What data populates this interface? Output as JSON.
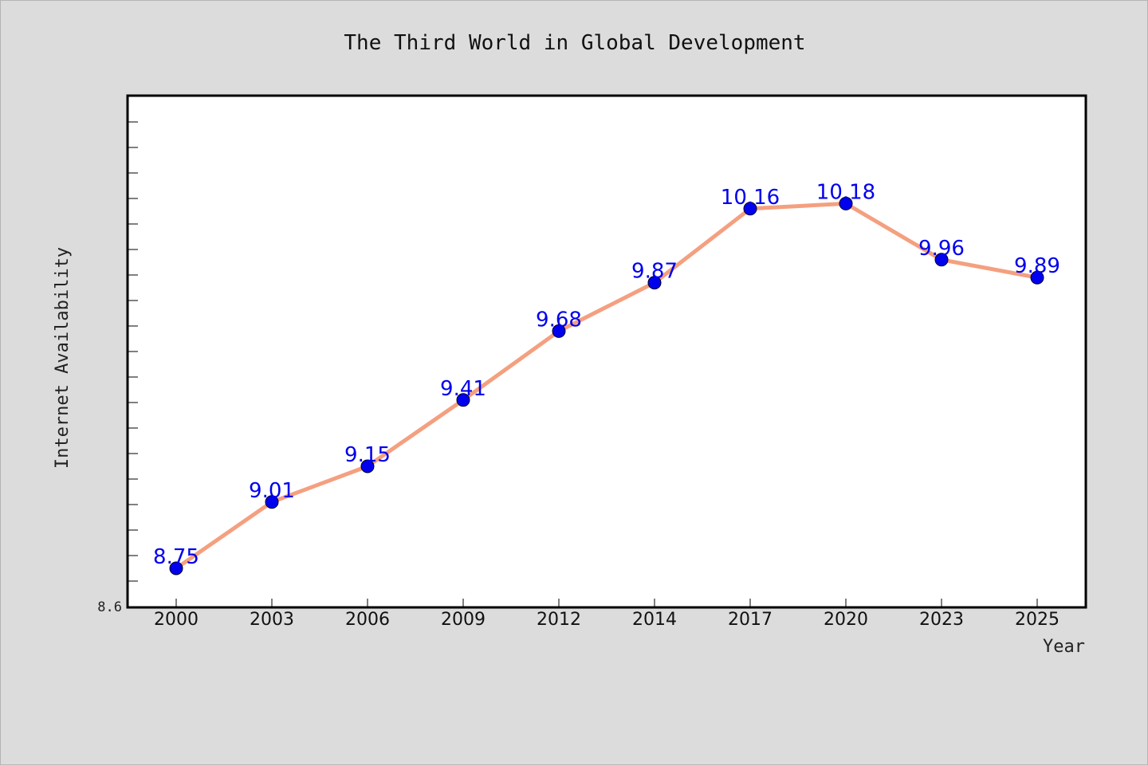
{
  "chart_data": {
    "type": "line",
    "title": "The Third World in Global Development",
    "xlabel": "Year",
    "ylabel": "Internet Availability",
    "categories": [
      "2000",
      "2003",
      "2006",
      "2009",
      "2012",
      "2014",
      "2017",
      "2020",
      "2023",
      "2025"
    ],
    "series": [
      {
        "values": [
          8.75,
          9.01,
          9.15,
          9.41,
          9.68,
          9.87,
          10.16,
          10.18,
          9.96,
          9.89
        ],
        "line_color": "#f4a080",
        "marker_color": "#0000ee",
        "label_color": "#0000ee"
      }
    ],
    "ylim": [
      8.6,
      10.6
    ],
    "y_tick_labels": [
      "8.6"
    ],
    "y_minor_step": 0.1,
    "grid": false,
    "legend": "none"
  }
}
